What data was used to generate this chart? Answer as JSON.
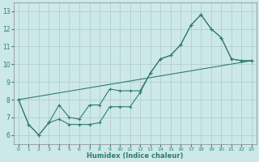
{
  "xlabel": "Humidex (Indice chaleur)",
  "ylabel": "",
  "bg_color": "#cce8e8",
  "grid_color": "#b0c8c8",
  "line_color": "#2e7d6e",
  "xlim": [
    -0.5,
    23.5
  ],
  "ylim": [
    5.5,
    13.5
  ],
  "yticks": [
    6,
    7,
    8,
    9,
    10,
    11,
    12,
    13
  ],
  "xticks": [
    0,
    1,
    2,
    3,
    4,
    5,
    6,
    7,
    8,
    9,
    10,
    11,
    12,
    13,
    14,
    15,
    16,
    17,
    18,
    19,
    20,
    21,
    22,
    23
  ],
  "line1_x": [
    0,
    1,
    2,
    3,
    4,
    5,
    6,
    7,
    8,
    9,
    10,
    11,
    12,
    13,
    14,
    15,
    16,
    17,
    18,
    19,
    20,
    21,
    22,
    23
  ],
  "line1_y": [
    8.0,
    6.6,
    6.0,
    6.7,
    6.9,
    6.6,
    6.6,
    6.6,
    6.7,
    7.6,
    7.6,
    7.6,
    8.4,
    9.5,
    10.3,
    10.5,
    11.1,
    12.2,
    12.8,
    12.0,
    11.5,
    10.3,
    10.2,
    10.2
  ],
  "line2_x": [
    0,
    1,
    2,
    3,
    4,
    5,
    6,
    7,
    8,
    9,
    10,
    11,
    12,
    13,
    14,
    15,
    16,
    17,
    18,
    19,
    20,
    21,
    22,
    23
  ],
  "line2_y": [
    8.0,
    6.6,
    6.0,
    6.7,
    7.7,
    7.0,
    6.9,
    7.7,
    7.7,
    8.6,
    8.5,
    8.5,
    8.5,
    9.5,
    10.3,
    10.5,
    11.1,
    12.2,
    12.8,
    12.0,
    11.5,
    10.3,
    10.2,
    10.2
  ],
  "line3_x": [
    0,
    23
  ],
  "line3_y": [
    8.0,
    10.2
  ],
  "figsize": [
    3.2,
    2.0
  ],
  "dpi": 100
}
